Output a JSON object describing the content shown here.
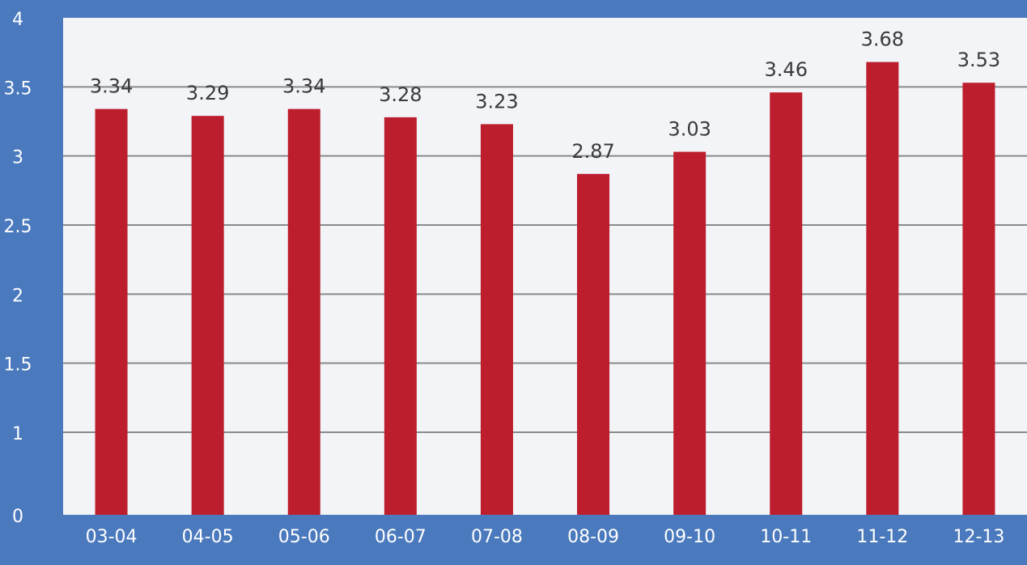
{
  "colors": {
    "background": "#4a79bd",
    "plot_area": "#f2f4f7",
    "bar": "#bd1e2d",
    "gridline": "#8a8a8a",
    "axis_text": "#ffffff",
    "data_label_text": "#3a3a3a"
  },
  "chart_data": {
    "type": "bar",
    "title": "",
    "xlabel": "",
    "ylabel": "",
    "categories": [
      "03-04",
      "04-05",
      "05-06",
      "06-07",
      "07-08",
      "08-09",
      "09-10",
      "10-11",
      "11-12",
      "12-13"
    ],
    "values": [
      3.34,
      3.29,
      3.34,
      3.28,
      3.23,
      2.87,
      3.03,
      3.46,
      3.68,
      3.53
    ],
    "data_labels": [
      "3.34",
      "3.29",
      "3.34",
      "3.28",
      "3.23",
      "2.87",
      "3.03",
      "3.46",
      "3.68",
      "3.53"
    ],
    "ylim": [
      0,
      4
    ],
    "yticks": [
      "0",
      "1",
      "1.5",
      "2",
      "2.5",
      "3",
      "3.5",
      "4"
    ],
    "grid": true,
    "legend": "none"
  }
}
